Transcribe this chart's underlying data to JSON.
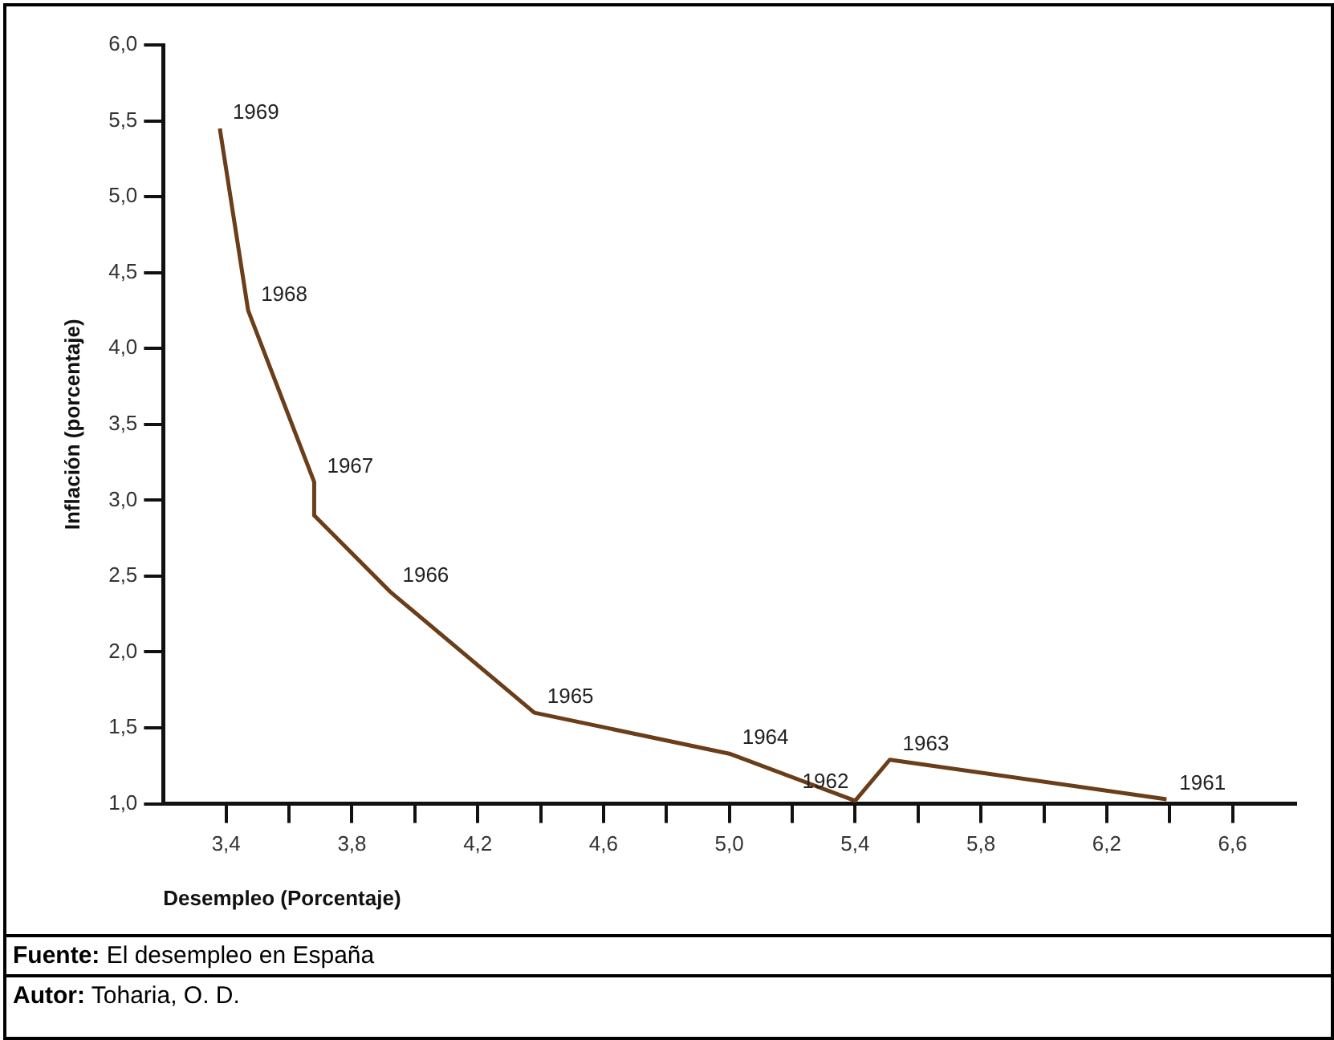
{
  "chart_data": {
    "type": "line",
    "xlabel": "Desempleo (Porcentaje)",
    "ylabel": "Inflación (porcentaje)",
    "x": [
      3.38,
      3.47,
      3.68,
      3.68,
      3.92,
      4.38,
      5.0,
      5.4,
      5.51,
      6.39
    ],
    "series": [
      {
        "color": "#6b3e1a",
        "values": [
          5.45,
          4.25,
          3.12,
          2.9,
          2.4,
          1.6,
          1.33,
          1.02,
          1.29,
          1.03
        ]
      }
    ],
    "xlim": [
      3.2,
      6.8
    ],
    "xticks": [
      {
        "value": 3.4,
        "label": "3,4"
      },
      {
        "value": 3.6,
        "label": null
      },
      {
        "value": 3.8,
        "label": "3,8"
      },
      {
        "value": 4.0,
        "label": null
      },
      {
        "value": 4.2,
        "label": "4,2"
      },
      {
        "value": 4.4,
        "label": null
      },
      {
        "value": 4.6,
        "label": "4,6"
      },
      {
        "value": 4.8,
        "label": null
      },
      {
        "value": 5.0,
        "label": "5,0"
      },
      {
        "value": 5.2,
        "label": null
      },
      {
        "value": 5.4,
        "label": "5,4"
      },
      {
        "value": 5.6,
        "label": null
      },
      {
        "value": 5.8,
        "label": "5,8"
      },
      {
        "value": 6.0,
        "label": null
      },
      {
        "value": 6.2,
        "label": "6,2"
      },
      {
        "value": 6.4,
        "label": null
      },
      {
        "value": 6.6,
        "label": "6,6"
      }
    ],
    "ylim": [
      1.0,
      6.0
    ],
    "yticks": [
      {
        "value": 1.0,
        "label": "1,0"
      },
      {
        "value": 1.5,
        "label": "1,5"
      },
      {
        "value": 2.0,
        "label": "2,0"
      },
      {
        "value": 2.5,
        "label": "2,5"
      },
      {
        "value": 3.0,
        "label": "3,0"
      },
      {
        "value": 3.5,
        "label": "3,5"
      },
      {
        "value": 4.0,
        "label": "4,0"
      },
      {
        "value": 4.5,
        "label": "4,5"
      },
      {
        "value": 5.0,
        "label": "5,0"
      },
      {
        "value": 5.5,
        "label": "5,5"
      },
      {
        "value": 6.0,
        "label": "6,0"
      }
    ],
    "grid": false,
    "legend": false,
    "marker": "none",
    "line_style": "solid",
    "annotations": [
      {
        "text": "1969",
        "x": 3.38,
        "y": 5.45
      },
      {
        "text": "1968",
        "x": 3.47,
        "y": 4.25
      },
      {
        "text": "1967",
        "x": 3.68,
        "y": 3.12
      },
      {
        "text": "1966",
        "x": 3.92,
        "y": 2.4
      },
      {
        "text": "1965",
        "x": 4.38,
        "y": 1.6
      },
      {
        "text": "1964",
        "x": 5.0,
        "y": 1.33
      },
      {
        "text": "1962",
        "x": 5.4,
        "y": 1.02
      },
      {
        "text": "1963",
        "x": 5.51,
        "y": 1.29
      },
      {
        "text": "1961",
        "x": 6.39,
        "y": 1.03
      },
      "Fuente: El desempleo en España",
      "Autor: Toharia, O. D."
    ]
  }
}
